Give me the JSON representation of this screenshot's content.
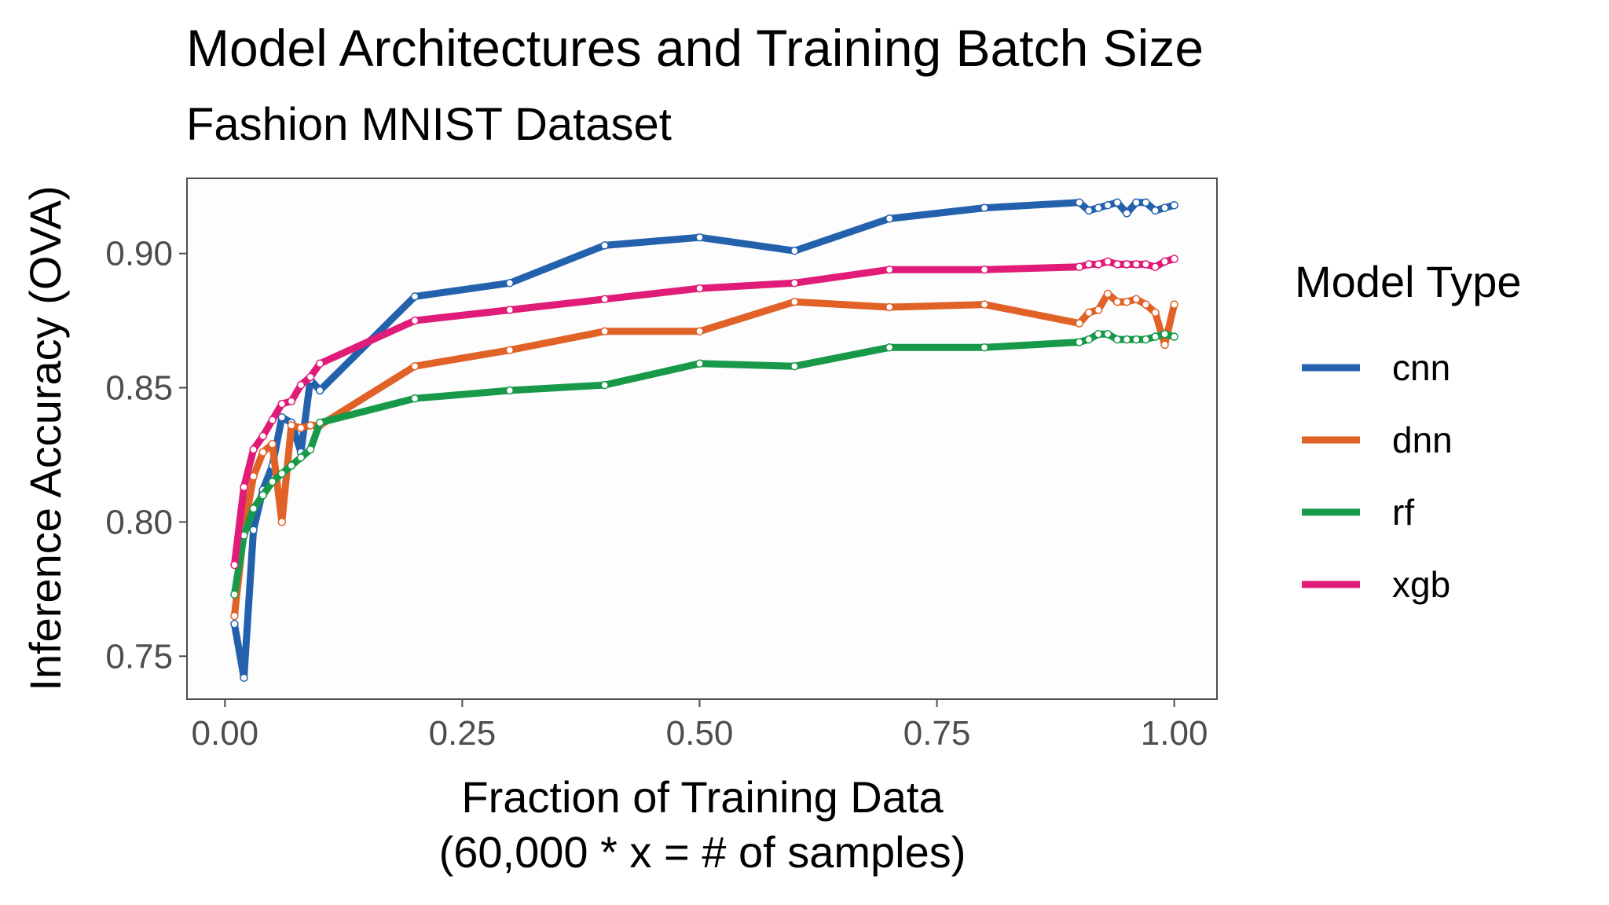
{
  "chart_data": {
    "type": "line",
    "title": "Model Architectures and Training Batch Size",
    "subtitle": "Fashion MNIST Dataset",
    "xlabel": "Fraction of Training Data",
    "xlabel_line2": "(60,000 * x = # of samples)",
    "ylabel": "Inference Accuracy (OVA)",
    "xlim": [
      -0.04,
      1.045
    ],
    "ylim": [
      0.734,
      0.928
    ],
    "x_ticks": [
      0.0,
      0.25,
      0.5,
      0.75,
      1.0
    ],
    "x_tick_labels": [
      "0.00",
      "0.25",
      "0.50",
      "0.75",
      "1.00"
    ],
    "y_ticks": [
      0.75,
      0.8,
      0.85,
      0.9
    ],
    "y_tick_labels": [
      "0.75",
      "0.80",
      "0.85",
      "0.90"
    ],
    "grid": false,
    "legend_title": "Model Type",
    "legend_position": "right",
    "x": [
      0.01,
      0.02,
      0.03,
      0.04,
      0.05,
      0.06,
      0.07,
      0.08,
      0.09,
      0.1,
      0.2,
      0.3,
      0.4,
      0.5,
      0.6,
      0.7,
      0.8,
      0.9,
      0.91,
      0.92,
      0.93,
      0.94,
      0.95,
      0.96,
      0.97,
      0.98,
      0.99,
      1.0
    ],
    "series": [
      {
        "name": "cnn",
        "color": "#2461ad",
        "values": [
          0.762,
          0.742,
          0.797,
          0.812,
          0.821,
          0.839,
          0.837,
          0.826,
          0.853,
          0.849,
          0.884,
          0.889,
          0.903,
          0.906,
          0.901,
          0.913,
          0.917,
          0.919,
          0.916,
          0.917,
          0.918,
          0.919,
          0.915,
          0.919,
          0.919,
          0.916,
          0.917,
          0.918
        ]
      },
      {
        "name": "dnn",
        "color": "#e06226",
        "values": [
          0.765,
          0.797,
          0.817,
          0.826,
          0.829,
          0.8,
          0.836,
          0.835,
          0.836,
          0.836,
          0.858,
          0.864,
          0.871,
          0.871,
          0.882,
          0.88,
          0.881,
          0.874,
          0.878,
          0.879,
          0.885,
          0.882,
          0.882,
          0.883,
          0.881,
          0.878,
          0.866,
          0.881
        ]
      },
      {
        "name": "rf",
        "color": "#18994a",
        "values": [
          0.773,
          0.795,
          0.805,
          0.81,
          0.815,
          0.818,
          0.821,
          0.824,
          0.827,
          0.837,
          0.846,
          0.849,
          0.851,
          0.859,
          0.858,
          0.865,
          0.865,
          0.867,
          0.868,
          0.87,
          0.87,
          0.868,
          0.868,
          0.868,
          0.868,
          0.869,
          0.87,
          0.869
        ]
      },
      {
        "name": "xgb",
        "color": "#e01b78",
        "values": [
          0.784,
          0.813,
          0.827,
          0.832,
          0.838,
          0.844,
          0.845,
          0.851,
          0.854,
          0.859,
          0.875,
          0.879,
          0.883,
          0.887,
          0.889,
          0.894,
          0.894,
          0.895,
          0.896,
          0.896,
          0.897,
          0.896,
          0.896,
          0.896,
          0.896,
          0.895,
          0.897,
          0.898
        ]
      }
    ]
  }
}
